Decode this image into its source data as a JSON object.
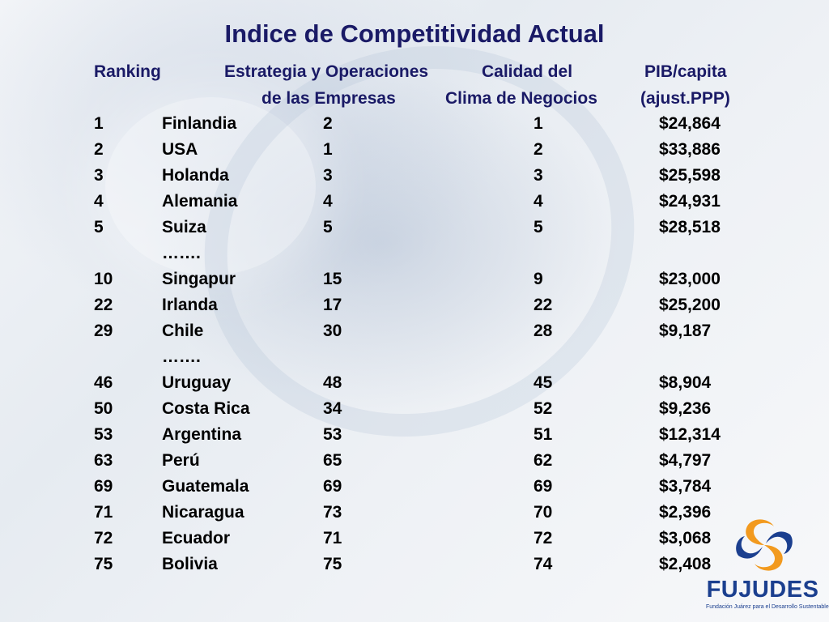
{
  "title": "Indice de Competitividad Actual",
  "headers": {
    "ranking": "Ranking",
    "estrategia_line1": "Estrategia y Operaciones",
    "estrategia_line2": "de las Empresas",
    "calidad_line1": "Calidad del",
    "calidad_line2": "Clima de Negocios",
    "pib_line1": "PIB/capita",
    "pib_line2": "(ajust.PPP)"
  },
  "rows": [
    {
      "rank": "1",
      "country": "Finlandia",
      "estrategia": "2",
      "clima": "1",
      "pib": "$24,864"
    },
    {
      "rank": "2",
      "country": "USA",
      "estrategia": "1",
      "clima": "2",
      "pib": "$33,886"
    },
    {
      "rank": "3",
      "country": "Holanda",
      "estrategia": "3",
      "clima": "3",
      "pib": "$25,598"
    },
    {
      "rank": "4",
      "country": "Alemania",
      "estrategia": "4",
      "clima": "4",
      "pib": "$24,931"
    },
    {
      "rank": "5",
      "country": "Suiza",
      "estrategia": "5",
      "clima": "5",
      "pib": "$28,518"
    },
    {
      "rank": "",
      "country": "…….",
      "estrategia": "",
      "clima": "",
      "pib": ""
    },
    {
      "rank": "10",
      "country": "Singapur",
      "estrategia": "15",
      "clima": "9",
      "pib": "$23,000"
    },
    {
      "rank": "22",
      "country": "Irlanda",
      "estrategia": "17",
      "clima": "22",
      "pib": "$25,200"
    },
    {
      "rank": "29",
      "country": "Chile",
      "estrategia": "30",
      "clima": "28",
      "pib": "$9,187"
    },
    {
      "rank": "",
      "country": "…….",
      "estrategia": "",
      "clima": "",
      "pib": ""
    },
    {
      "rank": "46",
      "country": "Uruguay",
      "estrategia": "48",
      "clima": "45",
      "pib": "$8,904"
    },
    {
      "rank": "50",
      "country": "Costa Rica",
      "estrategia": "34",
      "clima": "52",
      "pib": "$9,236"
    },
    {
      "rank": "53",
      "country": "Argentina",
      "estrategia": "53",
      "clima": "51",
      "pib": "$12,314"
    },
    {
      "rank": "63",
      "country": "Perú",
      "estrategia": "65",
      "clima": "62",
      "pib": "$4,797"
    },
    {
      "rank": "69",
      "country": "Guatemala",
      "estrategia": "69",
      "clima": "69",
      "pib": "$3,784"
    },
    {
      "rank": "71",
      "country": "Nicaragua",
      "estrategia": "73",
      "clima": "70",
      "pib": "$2,396"
    },
    {
      "rank": "72",
      "country": "Ecuador",
      "estrategia": "71",
      "clima": "72",
      "pib": "$3,068"
    },
    {
      "rank": "75",
      "country": "Bolivia",
      "estrategia": "75",
      "clima": "74",
      "pib": "$2,408"
    }
  ],
  "logo": {
    "name": "FUJUDES",
    "subtitle": "Fundación Juárez para el Desarrollo Sustentable",
    "icon": "swirl-logo-icon"
  },
  "colors": {
    "title": "#1a1a66",
    "logo_blue": "#1b3f8f",
    "logo_orange": "#f29a1f"
  }
}
